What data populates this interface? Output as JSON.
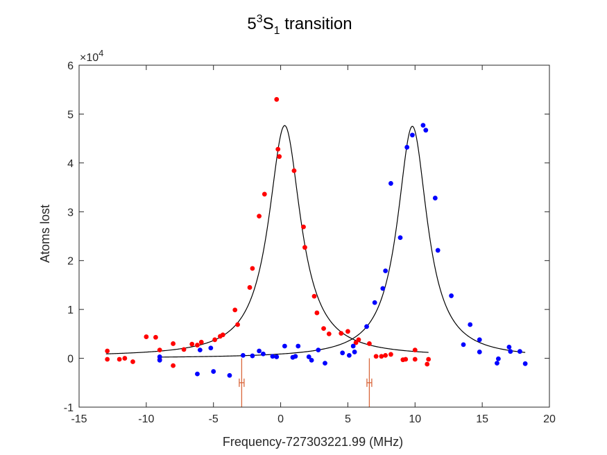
{
  "chart_data": {
    "type": "scatter",
    "title": {
      "main": "5",
      "sup": "3",
      "mid": "S",
      "sub": "1",
      "rest": " transition"
    },
    "xlabel": "Frequency-727303221.99 (MHz)",
    "ylabel": "Atoms lost",
    "y_exponent": {
      "prefix": "×10",
      "power": "4"
    },
    "xlim": [
      -15,
      20
    ],
    "ylim": [
      -1,
      6
    ],
    "xticks": [
      -15,
      -10,
      -5,
      0,
      5,
      10,
      15,
      20
    ],
    "yticks": [
      -1,
      0,
      1,
      2,
      3,
      4,
      5,
      6
    ],
    "xtick_labels": [
      "-15",
      "-10",
      "-5",
      "0",
      "5",
      "10",
      "15",
      "20"
    ],
    "ytick_labels": [
      "-1",
      "0",
      "1",
      "2",
      "3",
      "4",
      "5",
      "6"
    ],
    "grid": false,
    "colors": {
      "red": "#ff0000",
      "blue": "#0000ff",
      "fit": "#000000",
      "marker": "#d9673b",
      "axis": "#262626"
    },
    "series": [
      {
        "color": "#ff0000",
        "points": [
          [
            -12.9,
            0.15
          ],
          [
            -12.9,
            -0.02
          ],
          [
            -12,
            -0.02
          ],
          [
            -11.6,
            0.0
          ],
          [
            -11,
            -0.07
          ],
          [
            -10,
            0.44
          ],
          [
            -9.3,
            0.43
          ],
          [
            -9,
            0.17
          ],
          [
            -9,
            -0.03
          ],
          [
            -8,
            0.3
          ],
          [
            -8,
            -0.15
          ],
          [
            -7.2,
            0.18
          ],
          [
            -6.6,
            0.29
          ],
          [
            -6.2,
            0.27
          ],
          [
            -5.9,
            0.33
          ],
          [
            -4.9,
            0.38
          ],
          [
            -4.5,
            0.45
          ],
          [
            -4.3,
            0.48
          ],
          [
            -3.4,
            0.99
          ],
          [
            -3.2,
            0.69
          ],
          [
            -2.3,
            1.45
          ],
          [
            -2.1,
            1.84
          ],
          [
            -1.6,
            2.91
          ],
          [
            -1.2,
            3.36
          ],
          [
            -0.3,
            5.3
          ],
          [
            -0.2,
            4.28
          ],
          [
            -0.1,
            4.13
          ],
          [
            1,
            3.84
          ],
          [
            1.7,
            2.69
          ],
          [
            1.8,
            2.27
          ],
          [
            2.5,
            1.27
          ],
          [
            2.7,
            0.93
          ],
          [
            3.2,
            0.61
          ],
          [
            3.6,
            0.5
          ],
          [
            4.5,
            0.51
          ],
          [
            5,
            0.55
          ],
          [
            5.6,
            0.32
          ],
          [
            5.8,
            0.38
          ],
          [
            6.6,
            0.3
          ],
          [
            7.1,
            0.04
          ],
          [
            7.5,
            0.04
          ],
          [
            7.8,
            0.06
          ],
          [
            8.2,
            0.08
          ],
          [
            9.1,
            -0.03
          ],
          [
            9.3,
            -0.02
          ],
          [
            10,
            -0.02
          ],
          [
            10,
            0.17
          ],
          [
            10.9,
            -0.12
          ],
          [
            11,
            -0.02
          ]
        ]
      },
      {
        "color": "#0000ff",
        "points": [
          [
            -9,
            0.03
          ],
          [
            -9,
            -0.04
          ],
          [
            -6.2,
            -0.32
          ],
          [
            -6,
            0.17
          ],
          [
            -5.2,
            0.21
          ],
          [
            -5,
            -0.27
          ],
          [
            -3.8,
            -0.35
          ],
          [
            -2.8,
            0.06
          ],
          [
            -2.1,
            0.05
          ],
          [
            -1.6,
            0.15
          ],
          [
            -1.3,
            0.09
          ],
          [
            -0.6,
            0.04
          ],
          [
            -0.3,
            0.03
          ],
          [
            0.3,
            0.25
          ],
          [
            0.9,
            0.02
          ],
          [
            1.1,
            0.04
          ],
          [
            1.3,
            0.25
          ],
          [
            2.1,
            0.03
          ],
          [
            2.3,
            -0.04
          ],
          [
            2.8,
            0.17
          ],
          [
            3.3,
            -0.1
          ],
          [
            4.6,
            0.11
          ],
          [
            5.1,
            0.06
          ],
          [
            5.4,
            0.25
          ],
          [
            5.5,
            0.13
          ],
          [
            6.4,
            0.65
          ],
          [
            7,
            1.14
          ],
          [
            7.6,
            1.43
          ],
          [
            7.8,
            1.79
          ],
          [
            8.2,
            3.58
          ],
          [
            8.9,
            2.47
          ],
          [
            9.4,
            4.32
          ],
          [
            9.8,
            4.57
          ],
          [
            10.6,
            4.77
          ],
          [
            10.8,
            4.67
          ],
          [
            11.5,
            3.28
          ],
          [
            11.7,
            2.21
          ],
          [
            12.7,
            1.28
          ],
          [
            13.6,
            0.28
          ],
          [
            14.1,
            0.69
          ],
          [
            14.8,
            0.38
          ],
          [
            14.8,
            0.13
          ],
          [
            16.1,
            -0.1
          ],
          [
            16.2,
            -0.01
          ],
          [
            17,
            0.23
          ],
          [
            17.1,
            0.14
          ],
          [
            17.8,
            0.14
          ],
          [
            18.2,
            -0.11
          ]
        ]
      }
    ],
    "fits": [
      {
        "color": "#000000",
        "center": 0.3,
        "amplitude": 4.73,
        "hwhm": 1.45,
        "offset": 0.035,
        "x_range": [
          -13,
          11
        ]
      },
      {
        "color": "#000000",
        "center": 9.8,
        "amplitude": 4.75,
        "hwhm": 1.35,
        "offset": 0.0,
        "x_range": [
          -9,
          18.2
        ]
      }
    ],
    "markers": [
      {
        "x": -2.9,
        "y_range": [
          -1,
          0.0
        ],
        "error_y": -0.5,
        "error_half_width": 0.18,
        "color": "#d9673b"
      },
      {
        "x": 6.6,
        "y_range": [
          -1,
          0.0
        ],
        "error_y": -0.5,
        "error_half_width": 0.18,
        "color": "#d9673b"
      }
    ]
  }
}
